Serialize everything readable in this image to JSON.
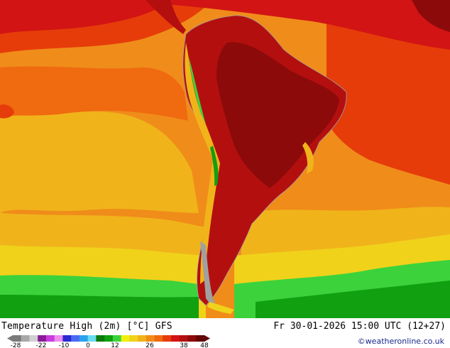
{
  "map": {
    "title": "Temperature High (2m) [°C] GFS",
    "datetime": "Fr 30-01-2026 15:00 UTC (12+27)",
    "credit": "©weatheronline.co.uk",
    "colorscale": {
      "ticks": [
        "-28",
        "-22",
        "-10",
        "0",
        "12",
        "26",
        "38",
        "48"
      ],
      "colors": [
        "#7a7a7a",
        "#a8a8a8",
        "#d0d0d0",
        "#8a1a9a",
        "#c83cdc",
        "#ee8cf0",
        "#2a2ad2",
        "#4a6af0",
        "#2aa2f0",
        "#6adcf0",
        "#0a7a0a",
        "#10a010",
        "#3cd23c",
        "#f0f00a",
        "#f0d21a",
        "#f0b41a",
        "#f08c1a",
        "#f06a10",
        "#e63c0a",
        "#d21414",
        "#b40f0f",
        "#8c0a0a",
        "#640505"
      ]
    },
    "palette": {
      "ocean_orange": "#f08c1a",
      "ocean_deep_orange": "#f06a10",
      "warm_yellow": "#f0b41a",
      "red": "#e63c0a",
      "hot_red": "#d21414",
      "dark_red": "#b40f0f",
      "green": "#10a010",
      "bright_green": "#3cd23c",
      "border_grey": "#a0a0a0"
    }
  }
}
